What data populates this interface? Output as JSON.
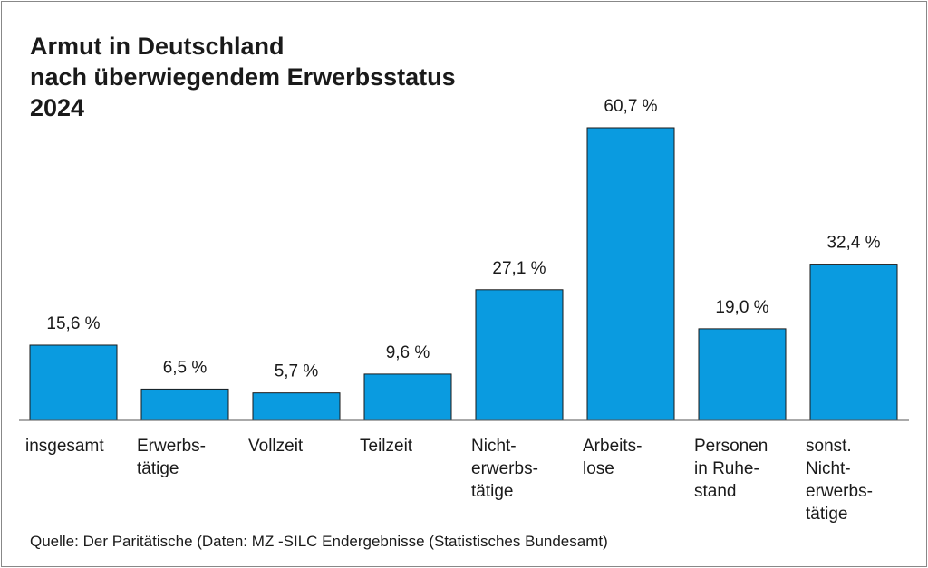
{
  "chart_data": {
    "type": "bar",
    "title": [
      "Armut in Deutschland",
      "nach überwiegendem Erwerbsstatus",
      "2024"
    ],
    "categories": [
      [
        "insgesamt"
      ],
      [
        "Erwerbs-",
        "tätige"
      ],
      [
        "Vollzeit"
      ],
      [
        "Teilzeit"
      ],
      [
        "Nicht-",
        "erwerbs-",
        "tätige"
      ],
      [
        "Arbeits-",
        "lose"
      ],
      [
        "Personen",
        "in Ruhe-",
        "stand"
      ],
      [
        "sonst.",
        "Nicht-",
        "erwerbs-",
        "tätige"
      ]
    ],
    "values": [
      15.6,
      6.5,
      5.7,
      9.6,
      27.1,
      60.7,
      19.0,
      32.4
    ],
    "value_labels": [
      "15,6 %",
      "6,5 %",
      "5,7 %",
      "9,6 %",
      "27,1 %",
      "60,7 %",
      "19,0 %",
      "32,4 %"
    ],
    "xlabel": "",
    "ylabel": "",
    "ylim": [
      0,
      60.7
    ],
    "bar_color": "#0a9be0",
    "grid": false
  },
  "source": "Quelle: Der Paritätische (Daten: MZ -SILC Endergebnisse (Statistisches Bundesamt)"
}
